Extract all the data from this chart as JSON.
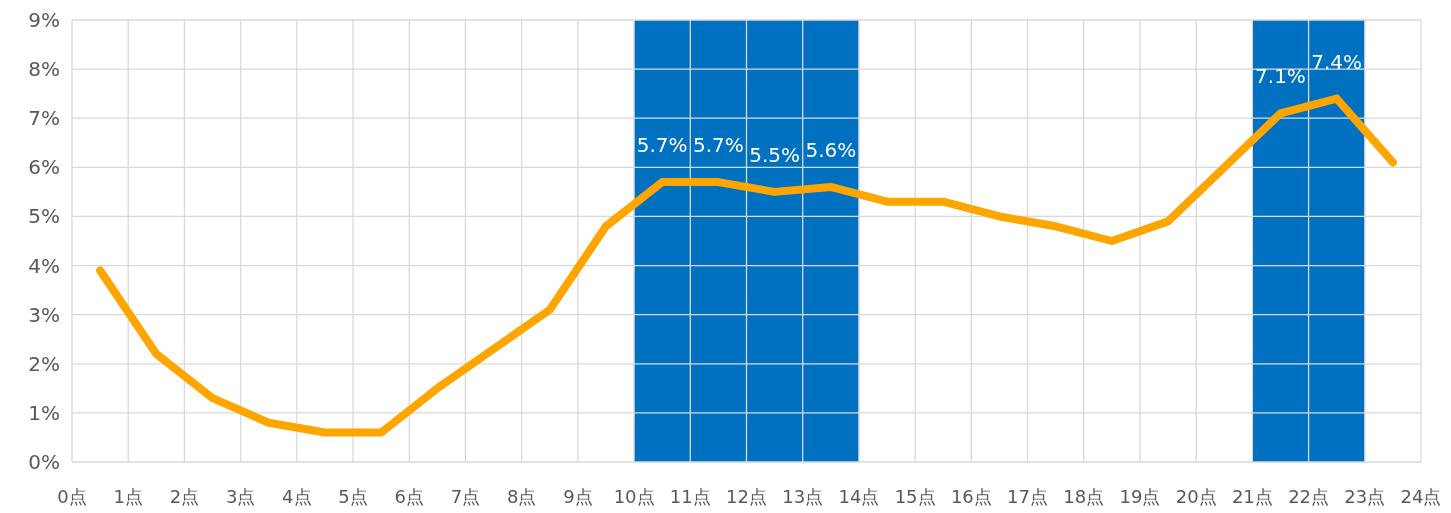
{
  "chart_data": {
    "type": "line",
    "x": [
      0.5,
      1.5,
      2.5,
      3.5,
      4.5,
      5.5,
      6.5,
      7.5,
      8.5,
      9.5,
      10.5,
      11.5,
      12.5,
      13.5,
      14.5,
      15.5,
      16.5,
      17.5,
      18.5,
      19.5,
      20.5,
      21.5,
      22.5,
      23.5
    ],
    "values": [
      3.9,
      2.2,
      1.3,
      0.8,
      0.6,
      0.6,
      1.5,
      2.3,
      3.1,
      4.8,
      5.7,
      5.7,
      5.5,
      5.6,
      5.3,
      5.3,
      5.0,
      4.8,
      4.5,
      4.9,
      6.0,
      7.1,
      7.4,
      6.1
    ],
    "value_labels": [
      null,
      null,
      null,
      null,
      null,
      null,
      null,
      null,
      null,
      null,
      "5.7%",
      "5.7%",
      "5.5%",
      "5.6%",
      null,
      null,
      null,
      null,
      null,
      null,
      null,
      "7.1%",
      "7.4%",
      null
    ],
    "color": "#ffa500",
    "xlim": [
      0,
      24
    ],
    "xticks": [
      {
        "value": 0,
        "label": "0点"
      },
      {
        "value": 1,
        "label": "1点"
      },
      {
        "value": 2,
        "label": "2点"
      },
      {
        "value": 3,
        "label": "3点"
      },
      {
        "value": 4,
        "label": "4点"
      },
      {
        "value": 5,
        "label": "5点"
      },
      {
        "value": 6,
        "label": "6点"
      },
      {
        "value": 7,
        "label": "7点"
      },
      {
        "value": 8,
        "label": "8点"
      },
      {
        "value": 9,
        "label": "9点"
      },
      {
        "value": 10,
        "label": "10点"
      },
      {
        "value": 11,
        "label": "11点"
      },
      {
        "value": 12,
        "label": "12点"
      },
      {
        "value": 13,
        "label": "13点"
      },
      {
        "value": 14,
        "label": "14点"
      },
      {
        "value": 15,
        "label": "15点"
      },
      {
        "value": 16,
        "label": "16点"
      },
      {
        "value": 17,
        "label": "17点"
      },
      {
        "value": 18,
        "label": "18点"
      },
      {
        "value": 19,
        "label": "19点"
      },
      {
        "value": 20,
        "label": "20点"
      },
      {
        "value": 21,
        "label": "21点"
      },
      {
        "value": 22,
        "label": "22点"
      },
      {
        "value": 23,
        "label": "23点"
      },
      {
        "value": 24,
        "label": "24点"
      }
    ],
    "ylim": [
      0,
      9
    ],
    "yticks": [
      {
        "value": 0,
        "label": "0%"
      },
      {
        "value": 1,
        "label": "1%"
      },
      {
        "value": 2,
        "label": "2%"
      },
      {
        "value": 3,
        "label": "3%"
      },
      {
        "value": 4,
        "label": "4%"
      },
      {
        "value": 5,
        "label": "5%"
      },
      {
        "value": 6,
        "label": "6%"
      },
      {
        "value": 7,
        "label": "7%"
      },
      {
        "value": 8,
        "label": "8%"
      },
      {
        "value": 9,
        "label": "9%"
      }
    ],
    "grid": true,
    "bands": [
      {
        "axis": "x",
        "from": 10,
        "to": 14,
        "color": "#0070c0"
      },
      {
        "axis": "x",
        "from": 21,
        "to": 23,
        "color": "#0070c0"
      }
    ]
  }
}
